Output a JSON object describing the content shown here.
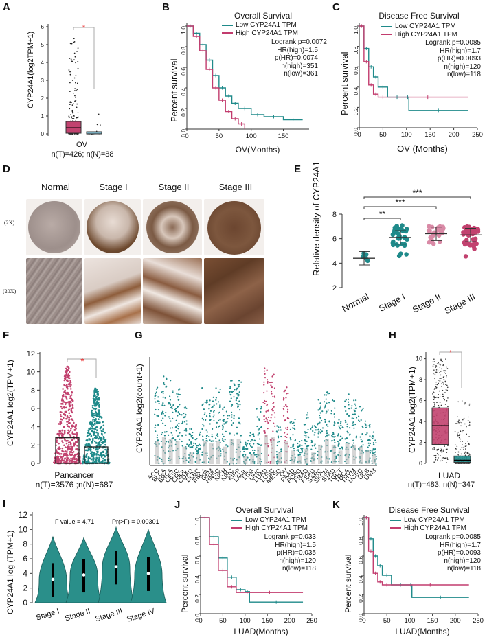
{
  "panels": {
    "A": {
      "label": "A",
      "ylabel": "CYP24A1(log2TPM+1)",
      "xcat": "OV",
      "n_text": "n(T)=426; n(N)=88",
      "sig": "*",
      "yticks": [
        "0",
        "1",
        "2",
        "3",
        "4",
        "5",
        "6"
      ]
    },
    "B": {
      "label": "B",
      "title": "Overall Survival",
      "ylabel": "Percent survival",
      "xlabel": "OV(Months)",
      "legend": [
        "Low CYP24A1 TPM",
        "High CYP24A1 TPM"
      ],
      "stats": [
        "Logrank p=0.0072",
        "HR(high)=1.5",
        "p(HR)=0.0074",
        "n(high)=351",
        "n(low)=361"
      ],
      "xticks": [
        "0",
        "50",
        "100",
        "150"
      ],
      "yticks": [
        "0.0",
        "0.2",
        "0.4",
        "0.6",
        "0.8",
        "1.0"
      ]
    },
    "C": {
      "label": "C",
      "title": "Disease Free Survival",
      "ylabel": "Percent survival",
      "xlabel": "OV (Months)",
      "legend": [
        "Low CYP24A1 TPM",
        "High CYP24A1 TPM"
      ],
      "stats": [
        "Logrank p=0.0085",
        "HR(high)=1.7",
        "p(HR)=0.0093",
        "n(high)=120",
        "n(low)=118"
      ],
      "xticks": [
        "0",
        "50",
        "100",
        "150",
        "200",
        "250"
      ],
      "yticks": [
        "0.0",
        "0.2",
        "0.4",
        "0.6",
        "0.8",
        "1.0"
      ]
    },
    "D": {
      "label": "D",
      "columns": [
        "Normal",
        "Stage I",
        "Stage II",
        "Stage III"
      ],
      "rows": [
        "(2X)",
        "(20X)"
      ]
    },
    "E": {
      "label": "E",
      "ylabel": "Relative density of CYP24A1",
      "yticks": [
        "2",
        "4",
        "6",
        "8"
      ],
      "categories": [
        "Normal",
        "Stage I",
        "Stage II",
        "Stage III"
      ],
      "sig": [
        "**",
        "***",
        "***"
      ]
    },
    "F": {
      "label": "F",
      "ylabel": "CYP24A1 log2(TPM+1)",
      "xcat": "Pancancer",
      "n_text": "n(T)=3576 ;n(N)=687",
      "sig": "*",
      "yticks": [
        "0",
        "2",
        "4",
        "6",
        "8",
        "10",
        "12"
      ]
    },
    "G": {
      "label": "G",
      "ylabel": "CYP24A1 log2(count+1)",
      "cancers": [
        "ACC",
        "BLCA",
        "BRCA",
        "CESC",
        "CHOL",
        "COAD",
        "DLBC",
        "ESCA",
        "GBM",
        "HNSC",
        "KICH",
        "KIRC",
        "KIRP",
        "LAML",
        "LGG",
        "LIHC",
        "LUAD",
        "LUSC",
        "MESO",
        "OV",
        "PAAD",
        "PCPG",
        "PRAD",
        "READ",
        "SARC",
        "SKCM",
        "STAD",
        "TGCT",
        "THCA",
        "THYM",
        "UCEC",
        "UCS",
        "UVM"
      ]
    },
    "H": {
      "label": "H",
      "ylabel": "CYP24A1 log2(TPM+1)",
      "xcat": "LUAD",
      "n_text": "n(T)=483; n(N)=347",
      "sig": "*",
      "yticks": [
        "0",
        "2",
        "4",
        "6",
        "8",
        "10"
      ]
    },
    "I": {
      "label": "I",
      "ylabel": "CYP24A1 log (TPM+1)",
      "fvalue": "F value = 4.71",
      "pr": "Pr(>F) = 0.00301",
      "categories": [
        "Stage I",
        "Stage II",
        "Stage III",
        "Stage IV"
      ],
      "yticks": [
        "0",
        "2",
        "4",
        "6",
        "8",
        "10",
        "12"
      ]
    },
    "J": {
      "label": "J",
      "title": "Overall Survival",
      "ylabel": "Percent survival",
      "xlabel": "LUAD(Months)",
      "legend": [
        "Low CYP24A1 TPM",
        "High CYP24A1 TPM"
      ],
      "stats": [
        "Logrank p=0.033",
        "HR(high)=1.5",
        "p(HR)=0.035",
        "n(high)=120",
        "n(low)=118"
      ],
      "xticks": [
        "0",
        "50",
        "100",
        "150",
        "200",
        "250"
      ],
      "yticks": [
        "0.0",
        "0.2",
        "0.4",
        "0.6",
        "0.8",
        "1.0"
      ]
    },
    "K": {
      "label": "K",
      "title": "Disease Free Survival",
      "ylabel": "Percent survival",
      "xlabel": "LUAD(Months)",
      "legend": [
        "Low CYP24A1 TPM",
        "High CYP24A1 TPM"
      ],
      "stats": [
        "Logrank p=0.0085",
        "HR(high)=1.7",
        "p(HR)=0.0093",
        "n(high)=120",
        "n(low)=118"
      ],
      "xticks": [
        "0",
        "50",
        "100",
        "150",
        "200",
        "250"
      ],
      "yticks": [
        "0.0",
        "0.2",
        "0.4",
        "0.6",
        "0.8",
        "1.0"
      ]
    }
  },
  "colors": {
    "low": "#1f8a8a",
    "high": "#c23c6e",
    "teal": "#1f8a8a",
    "pink": "#c2426f",
    "light_pink": "#d98aa6"
  },
  "chart_data": [
    {
      "type": "box",
      "panel": "A",
      "categories": [
        "T",
        "N"
      ],
      "medians": [
        0.15,
        0.02
      ],
      "y_max_tumor": 5.9,
      "ylim": [
        0,
        6
      ]
    },
    {
      "type": "line",
      "panel": "B",
      "title": "Overall Survival",
      "xlabel": "OV(Months)",
      "ylabel": "Percent survival",
      "xlim": [
        0,
        190
      ],
      "ylim": [
        0,
        1
      ],
      "series": [
        {
          "name": "Low CYP24A1 TPM",
          "x": [
            0,
            10,
            20,
            30,
            40,
            50,
            60,
            70,
            80,
            100,
            120,
            150,
            180
          ],
          "y": [
            1,
            0.93,
            0.82,
            0.67,
            0.52,
            0.4,
            0.32,
            0.25,
            0.2,
            0.14,
            0.12,
            0.09,
            0.09
          ]
        },
        {
          "name": "High CYP24A1 TPM",
          "x": [
            0,
            10,
            20,
            30,
            40,
            50,
            60,
            70,
            80,
            90
          ],
          "y": [
            1,
            0.9,
            0.76,
            0.58,
            0.4,
            0.28,
            0.17,
            0.1,
            0.05,
            0.0
          ]
        }
      ]
    },
    {
      "type": "line",
      "panel": "C",
      "title": "Disease Free Survival",
      "xlabel": "OV (Months)",
      "ylabel": "Percent survival",
      "xlim": [
        0,
        250
      ],
      "ylim": [
        0,
        1
      ],
      "series": [
        {
          "name": "Low CYP24A1 TPM",
          "x": [
            0,
            10,
            20,
            30,
            40,
            60,
            100,
            105,
            230
          ],
          "y": [
            1,
            0.78,
            0.6,
            0.5,
            0.4,
            0.3,
            0.3,
            0.17,
            0.17
          ]
        },
        {
          "name": "High CYP24A1 TPM",
          "x": [
            0,
            10,
            20,
            30,
            40,
            60,
            230
          ],
          "y": [
            1,
            0.65,
            0.42,
            0.33,
            0.3,
            0.3,
            0.3
          ]
        }
      ]
    },
    {
      "type": "scatter",
      "panel": "E",
      "categories": [
        "Normal",
        "Stage I",
        "Stage II",
        "Stage III"
      ],
      "means": [
        4.4,
        6.1,
        6.4,
        6.3
      ],
      "ylim": [
        2,
        8
      ]
    },
    {
      "type": "bar",
      "panel": "F",
      "categories": [
        "T",
        "N"
      ],
      "values": [
        2.8,
        1.8
      ],
      "ylim": [
        0,
        12
      ]
    },
    {
      "type": "box",
      "panel": "H",
      "categories": [
        "T",
        "N"
      ],
      "medians": [
        3.6,
        0.3
      ],
      "q1": [
        1.8,
        0.1
      ],
      "q3": [
        5.3,
        0.7
      ],
      "ylim": [
        0,
        10
      ]
    },
    {
      "type": "violin",
      "panel": "I",
      "categories": [
        "Stage I",
        "Stage II",
        "Stage III",
        "Stage IV"
      ],
      "medians": [
        3.2,
        3.8,
        4.9,
        4.0
      ],
      "ylim": [
        0,
        12
      ]
    },
    {
      "type": "line",
      "panel": "J",
      "title": "Overall Survival",
      "xlabel": "LUAD(Months)",
      "ylabel": "Percent survival",
      "xlim": [
        0,
        250
      ],
      "ylim": [
        0,
        1
      ],
      "series": [
        {
          "name": "Low CYP24A1 TPM",
          "x": [
            0,
            20,
            40,
            60,
            80,
            100,
            110,
            230
          ],
          "y": [
            1,
            0.8,
            0.58,
            0.38,
            0.25,
            0.23,
            0.12,
            0.12
          ]
        },
        {
          "name": "High CYP24A1 TPM",
          "x": [
            0,
            20,
            40,
            60,
            80,
            230
          ],
          "y": [
            1,
            0.72,
            0.45,
            0.28,
            0.22,
            0.22
          ]
        }
      ]
    },
    {
      "type": "line",
      "panel": "K",
      "title": "Disease Free Survival",
      "xlabel": "LUAD(Months)",
      "ylabel": "Percent survival",
      "xlim": [
        0,
        250
      ],
      "ylim": [
        0,
        1
      ],
      "series": [
        {
          "name": "Low CYP24A1 TPM",
          "x": [
            0,
            10,
            20,
            30,
            40,
            60,
            100,
            105,
            230
          ],
          "y": [
            1,
            0.78,
            0.6,
            0.5,
            0.4,
            0.3,
            0.3,
            0.17,
            0.17
          ]
        },
        {
          "name": "High CYP24A1 TPM",
          "x": [
            0,
            10,
            20,
            30,
            40,
            60,
            230
          ],
          "y": [
            1,
            0.65,
            0.42,
            0.33,
            0.3,
            0.3,
            0.3
          ]
        }
      ]
    }
  ]
}
